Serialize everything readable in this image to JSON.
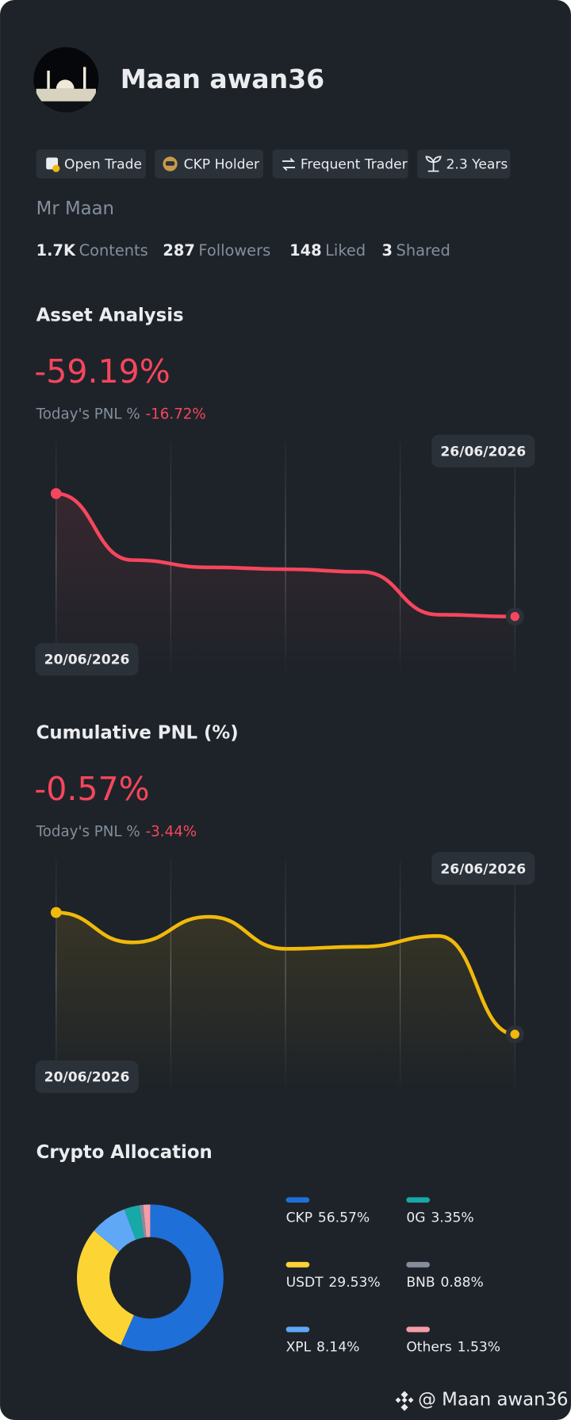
{
  "profile": {
    "name": "Maan awan36",
    "display_name": "Mr Maan"
  },
  "badges": [
    "Open Trade",
    "CKP Holder",
    "Frequent Trader",
    "2.3 Years"
  ],
  "stats": [
    {
      "value": "1.7K",
      "label": "Contents"
    },
    {
      "value": "287",
      "label": "Followers"
    },
    {
      "value": "148",
      "label": "Liked"
    },
    {
      "value": "3",
      "label": "Shared"
    }
  ],
  "charts": [
    {
      "type": "line",
      "title": "Asset Analysis",
      "headline": "-59.19%",
      "today_label": "Today's PNL %",
      "today_value": "-16.72%",
      "categories": [
        "20/06/2026",
        null,
        null,
        null,
        null,
        null,
        "26/06/2026"
      ],
      "values": [
        0,
        -32.0,
        -35.5,
        -36.4,
        -37.7,
        -58.3,
        -59.19
      ],
      "ylim": [
        -85,
        24
      ],
      "color": "#f6465d"
    },
    {
      "type": "line",
      "title": "Cumulative PNL (%)",
      "headline": "-0.57%",
      "today_label": "Today's PNL %",
      "today_value": "-3.44%",
      "categories": [
        "20/06/2026",
        null,
        null,
        null,
        null,
        null,
        "26/06/2026"
      ],
      "values": [
        0,
        -0.14,
        -0.02,
        -0.17,
        -0.16,
        -0.11,
        -0.57
      ],
      "ylim": [
        -0.82,
        0.24
      ],
      "color": "#f0b90b"
    }
  ],
  "allocation": {
    "type": "pie",
    "title": "Crypto Allocation",
    "categories": [
      "CKP",
      "USDT",
      "XPL",
      "0G",
      "BNB",
      "Others"
    ],
    "values": [
      56.57,
      29.53,
      8.14,
      3.35,
      0.88,
      1.53
    ],
    "value_labels": [
      "56.57%",
      "29.53%",
      "8.14%",
      "3.35%",
      "0.88%",
      "1.53%"
    ],
    "colors": [
      "#1f6fd8",
      "#fcd535",
      "#5ea8f5",
      "#17a8a8",
      "#848e9c",
      "#f59ca7"
    ]
  },
  "footer": "@ Maan awan36"
}
